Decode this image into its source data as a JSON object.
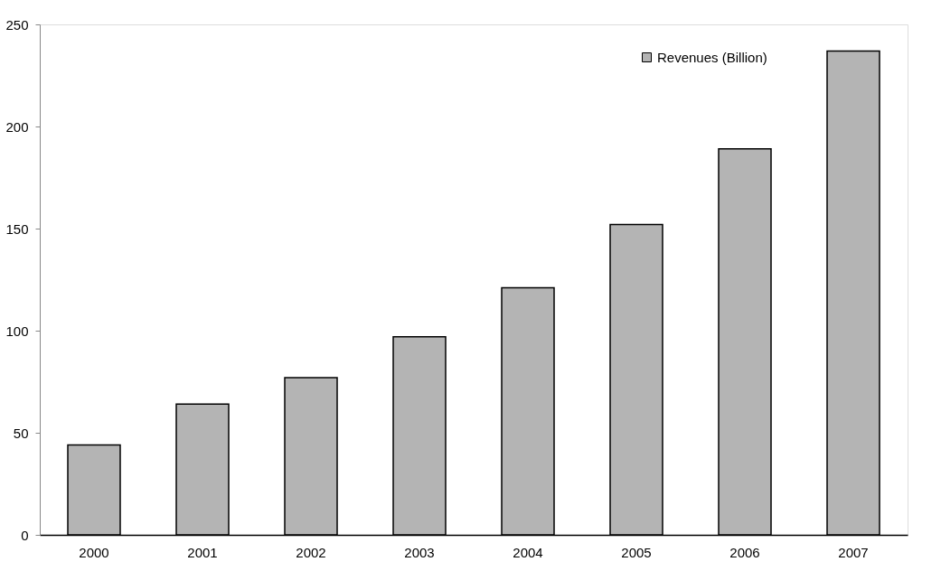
{
  "chart_data": {
    "type": "bar",
    "categories": [
      "2000",
      "2001",
      "2002",
      "2003",
      "2004",
      "2005",
      "2006",
      "2007"
    ],
    "series": [
      {
        "name": "Revenues (Billion)",
        "color": "#b4b4b4",
        "values": [
          44,
          64,
          77,
          97,
          121,
          152,
          189,
          237
        ]
      }
    ],
    "ylim": [
      0,
      250
    ],
    "yticks": [
      0,
      50,
      100,
      150,
      200,
      250
    ],
    "grid": false,
    "legend": "top right"
  }
}
